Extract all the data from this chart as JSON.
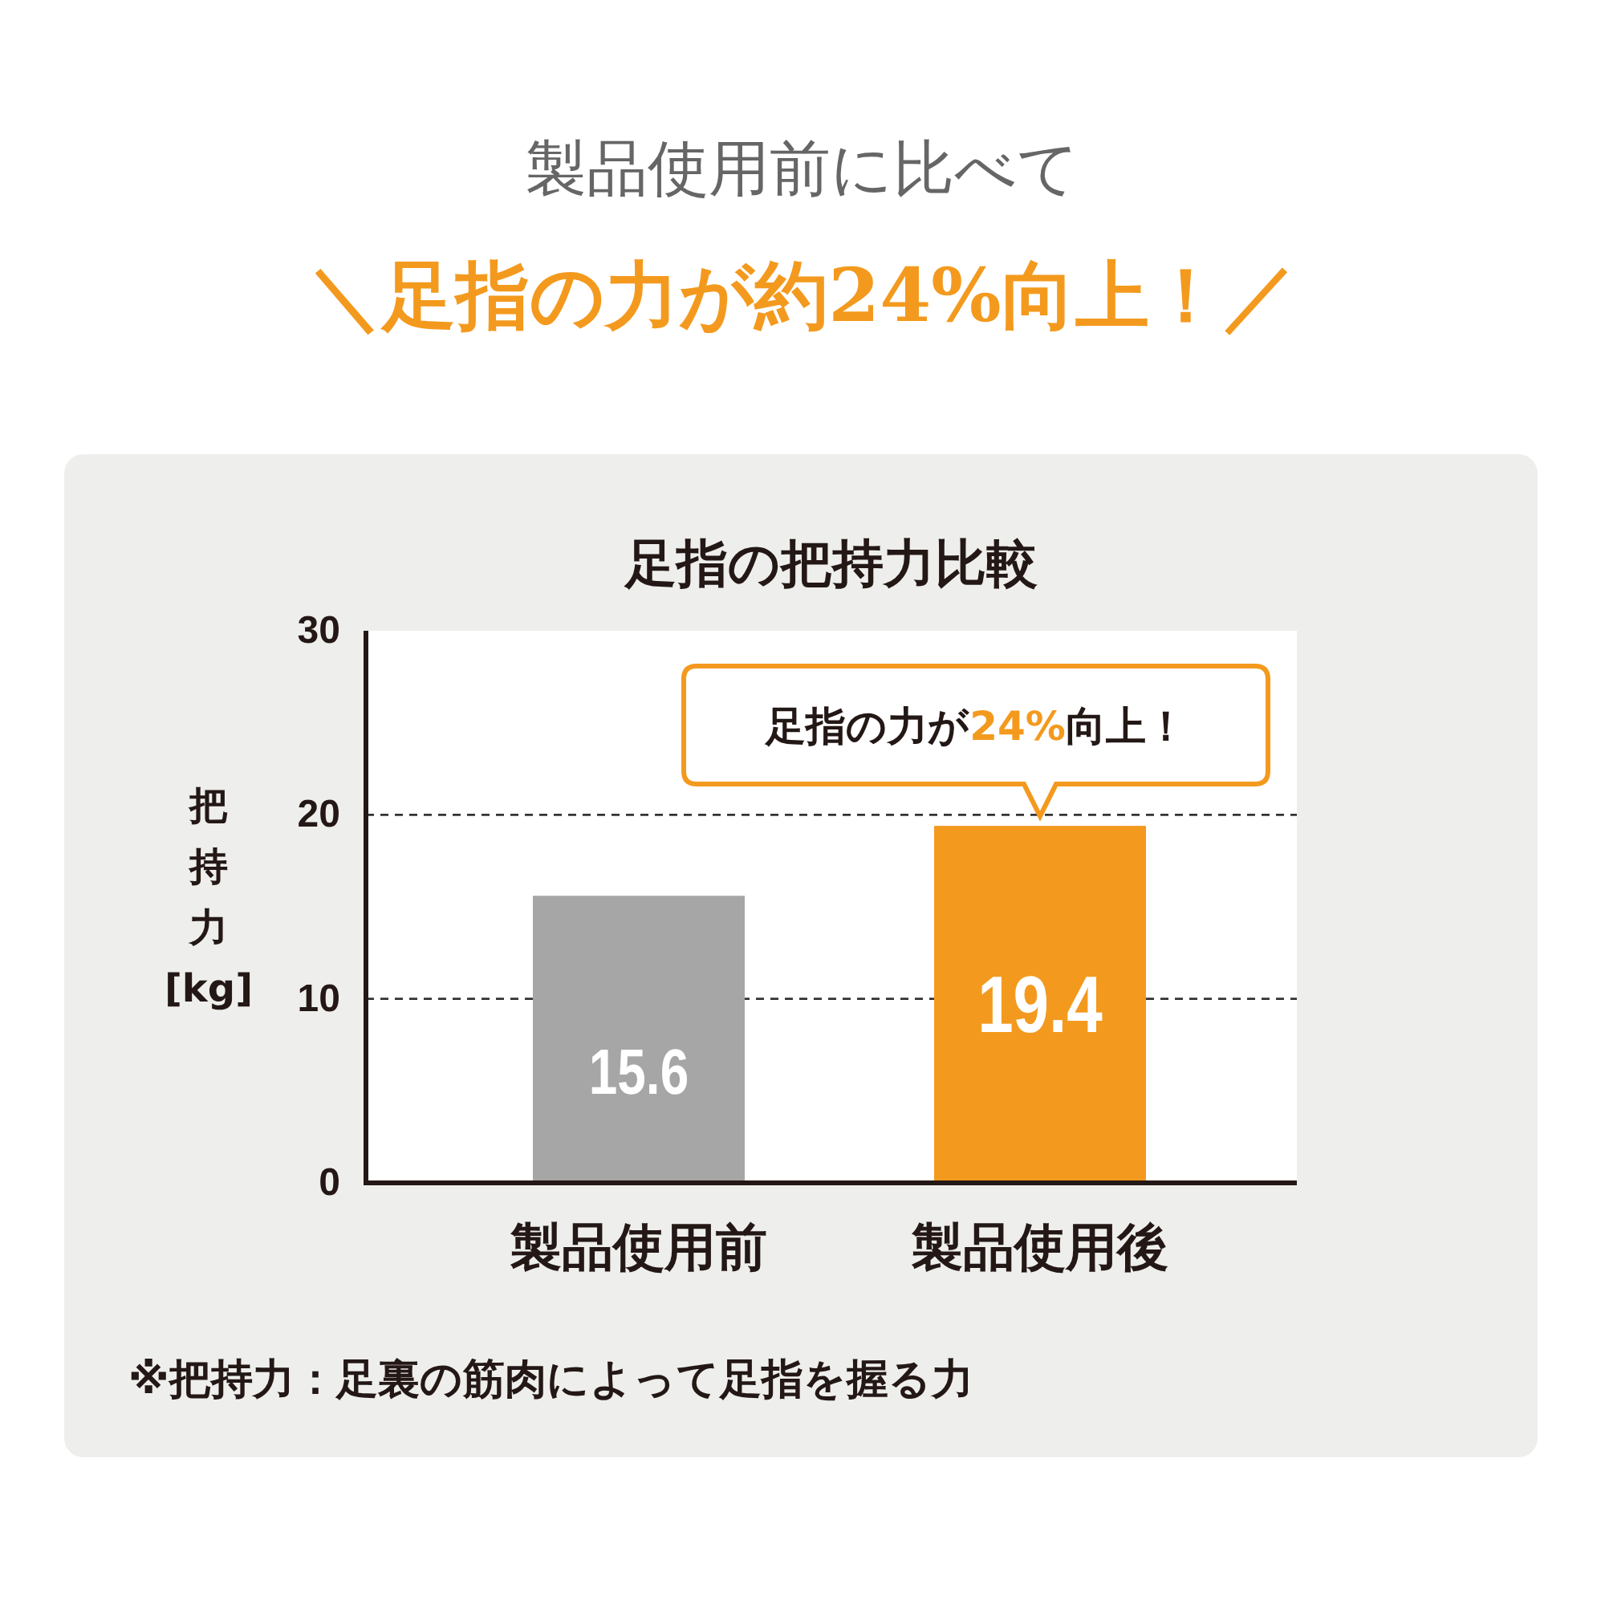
{
  "chart_data": {
    "type": "bar",
    "title": "製品使用前に比べて",
    "subtitle": "＼足指の力が約24%向上！／",
    "categories": [
      "製品使用前",
      "製品使用後"
    ],
    "values": [
      15.6,
      19.4
    ],
    "colors": [
      "#a6a6a6",
      "#f39a1e"
    ],
    "ylabel": "把持力[kg]",
    "ylim": [
      0,
      30
    ],
    "yticks": [
      0,
      10,
      20,
      30
    ],
    "grid": "y",
    "data_labels": true,
    "annotations": [
      "足指の把持力比較",
      {
        "text": "足指の力が24%向上！",
        "x": "製品使用後",
        "y": 19.4
      },
      "※把持力：足裏の筋肉によって足指を握る力"
    ]
  }
}
